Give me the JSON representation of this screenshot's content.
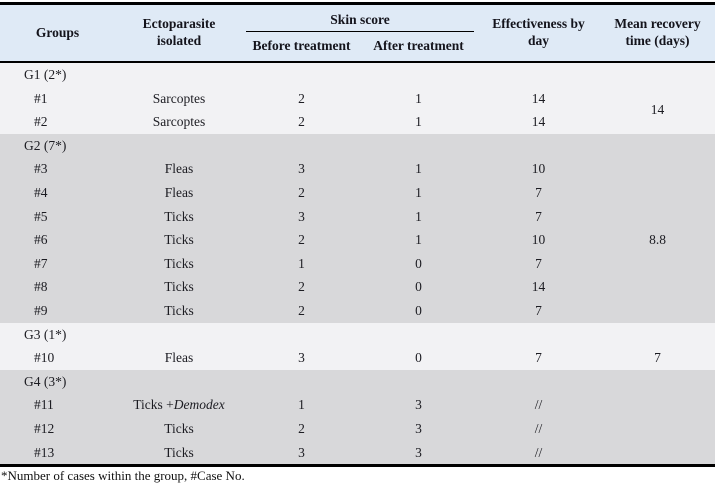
{
  "table": {
    "header": {
      "groups": "Groups",
      "ectoparasite": "Ectoparasite isolated",
      "skin_score": "Skin score",
      "before": "Before treatment",
      "after": "After treatment",
      "effectiveness": "Effectiveness by day",
      "mean_recovery": "Mean recovery time (days)"
    },
    "sections": [
      {
        "group_label": "G1 (2*)",
        "shade": "light",
        "mean_recovery": "14",
        "rows": [
          {
            "case_no": "#1",
            "parasite": "Sarcoptes",
            "parasite_italic": "",
            "before": "2",
            "after": "1",
            "effectiveness": "14"
          },
          {
            "case_no": "#2",
            "parasite": "Sarcoptes",
            "parasite_italic": "",
            "before": "2",
            "after": "1",
            "effectiveness": "14"
          }
        ]
      },
      {
        "group_label": "G2 (7*)",
        "shade": "dark",
        "mean_recovery": "8.8",
        "rows": [
          {
            "case_no": "#3",
            "parasite": "Fleas",
            "parasite_italic": "",
            "before": "3",
            "after": "1",
            "effectiveness": "10"
          },
          {
            "case_no": "#4",
            "parasite": "Fleas",
            "parasite_italic": "",
            "before": "2",
            "after": "1",
            "effectiveness": "7"
          },
          {
            "case_no": "#5",
            "parasite": "Ticks",
            "parasite_italic": "",
            "before": "3",
            "after": "1",
            "effectiveness": "7"
          },
          {
            "case_no": "#6",
            "parasite": "Ticks",
            "parasite_italic": "",
            "before": "2",
            "after": "1",
            "effectiveness": "10"
          },
          {
            "case_no": "#7",
            "parasite": "Ticks",
            "parasite_italic": "",
            "before": "1",
            "after": "0",
            "effectiveness": "7"
          },
          {
            "case_no": "#8",
            "parasite": "Ticks",
            "parasite_italic": "",
            "before": "2",
            "after": "0",
            "effectiveness": "14"
          },
          {
            "case_no": "#9",
            "parasite": "Ticks",
            "parasite_italic": "",
            "before": "2",
            "after": "0",
            "effectiveness": "7"
          }
        ]
      },
      {
        "group_label": "G3 (1*)",
        "shade": "light",
        "mean_recovery": "7",
        "rows": [
          {
            "case_no": "#10",
            "parasite": "Fleas",
            "parasite_italic": "",
            "before": "3",
            "after": "0",
            "effectiveness": "7"
          }
        ]
      },
      {
        "group_label": "G4 (3*)",
        "shade": "dark",
        "mean_recovery": "",
        "rows": [
          {
            "case_no": "#11",
            "parasite": "Ticks +",
            "parasite_italic": "Demodex",
            "before": "1",
            "after": "3",
            "effectiveness": "//"
          },
          {
            "case_no": "#12",
            "parasite": "Ticks",
            "parasite_italic": "",
            "before": "2",
            "after": "3",
            "effectiveness": "//"
          },
          {
            "case_no": "#13",
            "parasite": "Ticks",
            "parasite_italic": "",
            "before": "3",
            "after": "3",
            "effectiveness": "//"
          }
        ]
      }
    ],
    "footnote": "*Number of cases within the group, #Case No."
  },
  "colors": {
    "header_bg": "#dfeaf6",
    "header_text": "#14141c",
    "section_light": "#f2f2f4",
    "section_dark": "#d8d8da",
    "text": "#1c1c22",
    "border": "#000000"
  }
}
